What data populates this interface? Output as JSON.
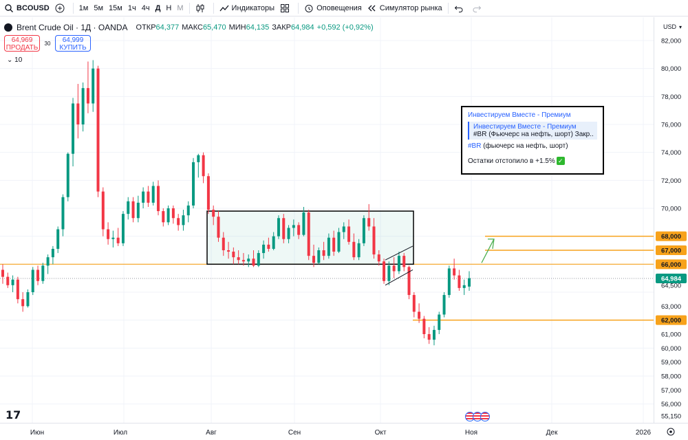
{
  "toolbar": {
    "symbol": "BCOUSD",
    "intervals": [
      "1м",
      "5м",
      "15м",
      "1ч",
      "4ч",
      "Д",
      "Н",
      "М"
    ],
    "active_interval": "Д",
    "indicators_label": "Индикаторы",
    "alerts_label": "Оповещения",
    "replay_label": "Симулятор рынка"
  },
  "legend": {
    "title": "Brent Crude Oil · 1Д · OANDA",
    "open_label": "ОТКР",
    "open": "64,377",
    "high_label": "МАКС",
    "high": "65,470",
    "low_label": "МИН",
    "low": "64,135",
    "close_label": "ЗАКР",
    "close": "64,984",
    "change": "+0,592 (+0,92%)"
  },
  "trade": {
    "sell_price": "64,969",
    "sell_label": "ПРОДАТЬ",
    "spread": "30",
    "buy_price": "64,999",
    "buy_label": "КУПИТЬ"
  },
  "collapse_label": "10",
  "price_scale": {
    "currency": "USD",
    "ticks": [
      "82,000",
      "80,000",
      "78,000",
      "76,000",
      "74,000",
      "72,000",
      "70,000",
      "68,000",
      "67,000",
      "66,000",
      "64,984",
      "64,500",
      "63,000",
      "62,000",
      "61,000",
      "60,000",
      "59,000",
      "58,000",
      "57,000",
      "56,000",
      "55,150"
    ],
    "level_labels": [
      "68,000",
      "67,000",
      "66,000",
      "62,000"
    ],
    "current_price": "64,984"
  },
  "time_scale": {
    "labels": [
      "Июн",
      "Июл",
      "Авг",
      "Сен",
      "Окт",
      "Ноя",
      "Дек",
      "2026"
    ]
  },
  "overlay": {
    "header": "Инвестируем Вместе - Премиум",
    "quote_title": "Инвестируем Вместе - Премиум",
    "quote_text": "#BR (Фьючерс на нефть, шорт) Закр...",
    "tag": "#BR",
    "line_rest": " (фьючерс на нефть, шорт)",
    "note": "Остатки отстопило в +1.5%"
  },
  "colors": {
    "up": "#089981",
    "down": "#f23645",
    "level": "#f7a21b",
    "accent": "#2962ff"
  },
  "chart_data": {
    "type": "candlestick",
    "x_label_dates": [
      "Июн",
      "Июл",
      "Авг",
      "Сен",
      "Окт",
      "Ноя",
      "Дек",
      "2026"
    ],
    "ylim": [
      54.6,
      83.0
    ],
    "levels": [
      68.0,
      67.0,
      66.0,
      62.0
    ],
    "rectangle": {
      "y_low": 66.0,
      "y_high": 69.8
    },
    "candles": [
      [
        65.6,
        66.0,
        64.6,
        65.1
      ],
      [
        65.1,
        65.4,
        64.3,
        64.5
      ],
      [
        64.5,
        65.2,
        64.0,
        64.9
      ],
      [
        64.9,
        65.1,
        63.2,
        63.5
      ],
      [
        63.5,
        64.0,
        62.6,
        63.0
      ],
      [
        63.0,
        64.2,
        62.9,
        64.0
      ],
      [
        64.0,
        65.8,
        63.8,
        65.6
      ],
      [
        65.6,
        65.9,
        64.5,
        64.8
      ],
      [
        64.8,
        66.1,
        64.6,
        65.9
      ],
      [
        65.9,
        66.7,
        65.3,
        66.5
      ],
      [
        66.5,
        67.3,
        66.0,
        67.1
      ],
      [
        67.1,
        68.7,
        66.8,
        68.5
      ],
      [
        68.5,
        71.0,
        68.0,
        70.8
      ],
      [
        70.8,
        74.0,
        70.5,
        73.9
      ],
      [
        73.9,
        77.9,
        73.0,
        77.5
      ],
      [
        77.5,
        78.9,
        75.0,
        76.0
      ],
      [
        76.0,
        79.0,
        75.5,
        78.6
      ],
      [
        78.6,
        80.5,
        76.8,
        77.5
      ],
      [
        77.5,
        80.6,
        76.9,
        80.0
      ],
      [
        80.0,
        80.2,
        70.8,
        71.2
      ],
      [
        71.2,
        71.5,
        68.0,
        68.5
      ],
      [
        68.5,
        69.0,
        67.4,
        67.8
      ],
      [
        67.8,
        68.4,
        67.2,
        67.9
      ],
      [
        67.9,
        68.6,
        67.3,
        67.5
      ],
      [
        67.5,
        69.8,
        67.3,
        69.6
      ],
      [
        69.6,
        70.8,
        69.2,
        70.5
      ],
      [
        70.5,
        70.8,
        69.0,
        69.3
      ],
      [
        69.3,
        70.9,
        69.0,
        70.4
      ],
      [
        70.4,
        71.5,
        70.0,
        71.2
      ],
      [
        71.2,
        71.6,
        70.1,
        70.4
      ],
      [
        70.4,
        71.9,
        70.2,
        71.6
      ],
      [
        71.6,
        72.0,
        69.5,
        69.8
      ],
      [
        69.8,
        70.0,
        68.7,
        69.0
      ],
      [
        69.0,
        70.2,
        68.8,
        70.0
      ],
      [
        70.0,
        70.2,
        68.9,
        69.3
      ],
      [
        69.3,
        69.6,
        68.4,
        68.8
      ],
      [
        68.8,
        69.9,
        68.4,
        69.5
      ],
      [
        69.5,
        70.5,
        69.0,
        70.2
      ],
      [
        70.2,
        73.6,
        70.0,
        73.3
      ],
      [
        73.3,
        73.9,
        72.2,
        73.8
      ],
      [
        73.8,
        74.0,
        71.8,
        72.3
      ],
      [
        72.3,
        72.5,
        69.6,
        69.9
      ],
      [
        69.9,
        70.2,
        68.8,
        69.4
      ],
      [
        69.4,
        69.8,
        67.6,
        67.9
      ],
      [
        67.9,
        68.3,
        66.6,
        67.0
      ],
      [
        67.0,
        67.6,
        66.4,
        66.9
      ],
      [
        66.9,
        67.2,
        66.0,
        66.5
      ],
      [
        66.5,
        67.0,
        66.0,
        66.3
      ],
      [
        66.3,
        66.8,
        65.9,
        66.2
      ],
      [
        66.2,
        66.7,
        65.8,
        66.4
      ],
      [
        66.4,
        67.0,
        65.8,
        65.9
      ],
      [
        65.9,
        67.0,
        65.8,
        66.8
      ],
      [
        66.8,
        67.7,
        66.4,
        67.4
      ],
      [
        67.4,
        67.9,
        66.9,
        67.1
      ],
      [
        67.1,
        68.3,
        67.0,
        68.0
      ],
      [
        68.0,
        69.5,
        67.8,
        69.3
      ],
      [
        69.3,
        69.6,
        67.5,
        67.8
      ],
      [
        67.8,
        68.8,
        67.5,
        68.6
      ],
      [
        68.6,
        69.2,
        68.0,
        68.8
      ],
      [
        68.8,
        69.0,
        67.8,
        68.1
      ],
      [
        68.1,
        70.1,
        68.0,
        69.7
      ],
      [
        69.7,
        69.9,
        66.3,
        66.6
      ],
      [
        66.6,
        67.4,
        65.8,
        66.1
      ],
      [
        66.1,
        67.2,
        66.0,
        67.0
      ],
      [
        67.0,
        67.6,
        66.3,
        66.6
      ],
      [
        66.6,
        68.2,
        66.4,
        67.9
      ],
      [
        67.9,
        68.4,
        66.6,
        66.9
      ],
      [
        66.9,
        68.6,
        66.8,
        68.3
      ],
      [
        68.3,
        69.0,
        67.8,
        68.7
      ],
      [
        68.7,
        69.2,
        67.4,
        67.6
      ],
      [
        67.6,
        68.2,
        66.3,
        66.5
      ],
      [
        66.5,
        67.8,
        66.3,
        67.5
      ],
      [
        67.5,
        69.5,
        67.3,
        69.3
      ],
      [
        69.3,
        70.3,
        68.4,
        68.7
      ],
      [
        68.7,
        69.3,
        66.4,
        66.7
      ],
      [
        66.7,
        67.0,
        65.9,
        66.2
      ],
      [
        66.2,
        66.4,
        64.6,
        64.8
      ],
      [
        64.8,
        66.2,
        64.5,
        65.9
      ],
      [
        65.9,
        66.5,
        65.0,
        65.5
      ],
      [
        65.5,
        66.9,
        65.3,
        66.6
      ],
      [
        66.6,
        66.8,
        65.5,
        65.8
      ],
      [
        65.8,
        65.9,
        63.5,
        63.8
      ],
      [
        63.8,
        64.0,
        62.2,
        62.6
      ],
      [
        62.6,
        63.2,
        61.8,
        62.1
      ],
      [
        62.1,
        62.3,
        60.7,
        61.0
      ],
      [
        61.0,
        61.5,
        60.3,
        60.6
      ],
      [
        60.6,
        61.6,
        60.2,
        61.3
      ],
      [
        61.3,
        62.6,
        61.0,
        62.4
      ],
      [
        62.4,
        64.0,
        62.2,
        63.8
      ],
      [
        63.8,
        65.9,
        63.6,
        65.7
      ],
      [
        65.7,
        66.4,
        64.9,
        65.2
      ],
      [
        65.2,
        65.6,
        64.1,
        64.3
      ],
      [
        64.3,
        64.9,
        63.8,
        64.5
      ],
      [
        64.4,
        65.5,
        64.1,
        65.0
      ]
    ]
  }
}
